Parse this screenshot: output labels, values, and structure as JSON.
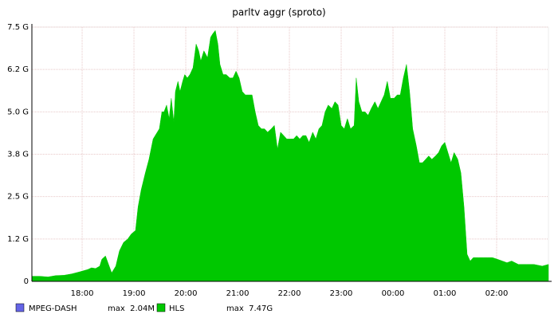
{
  "chart_data": {
    "type": "area",
    "title": "parltv aggr (sproto)",
    "x": [
      17.03,
      17.18,
      17.34,
      17.49,
      17.65,
      17.8,
      17.95,
      18.11,
      18.18,
      18.26,
      18.34,
      18.38,
      18.45,
      18.51,
      18.57,
      18.65,
      18.72,
      18.8,
      18.88,
      18.95,
      19.03,
      19.08,
      19.14,
      19.22,
      19.29,
      19.37,
      19.45,
      19.49,
      19.54,
      19.58,
      19.63,
      19.68,
      19.72,
      19.77,
      19.8,
      19.85,
      19.89,
      19.94,
      19.98,
      20.03,
      20.08,
      20.14,
      20.2,
      20.25,
      20.29,
      20.35,
      20.42,
      20.48,
      20.52,
      20.57,
      20.62,
      20.66,
      20.72,
      20.78,
      20.85,
      20.91,
      20.97,
      21.03,
      21.09,
      21.15,
      21.22,
      21.28,
      21.34,
      21.4,
      21.46,
      21.52,
      21.58,
      21.65,
      21.71,
      21.77,
      21.83,
      21.89,
      21.95,
      22.02,
      22.08,
      22.14,
      22.2,
      22.26,
      22.32,
      22.38,
      22.45,
      22.51,
      22.57,
      22.63,
      22.69,
      22.75,
      22.82,
      22.88,
      22.94,
      23.0,
      23.06,
      23.12,
      23.18,
      23.25,
      23.29,
      23.34,
      23.4,
      23.46,
      23.52,
      23.58,
      23.65,
      23.71,
      23.77,
      23.83,
      23.89,
      23.95,
      24.02,
      24.08,
      24.14,
      24.2,
      24.26,
      24.32,
      24.38,
      24.45,
      24.51,
      24.57,
      24.63,
      24.69,
      24.75,
      24.82,
      24.88,
      24.94,
      25.0,
      25.06,
      25.12,
      25.18,
      25.25,
      25.31,
      25.37,
      25.43,
      25.49,
      25.55,
      25.65,
      25.74,
      25.83,
      25.92,
      26.02,
      26.11,
      26.2,
      26.29,
      26.42,
      26.57,
      26.72,
      26.88,
      27.0
    ],
    "series": [
      {
        "name": "MPEG-DASH",
        "color": "#6464e6",
        "max_label": "max  2.04M",
        "values": [
          0,
          0,
          0,
          0,
          0,
          0,
          0,
          0,
          0,
          0,
          0,
          0,
          0,
          0,
          0,
          0,
          0,
          0,
          0,
          0,
          0,
          0,
          0,
          0,
          0,
          0,
          0,
          0,
          0,
          0,
          0,
          0,
          0,
          0,
          0,
          0,
          0,
          0,
          0,
          0,
          0,
          0,
          0,
          0,
          0,
          0,
          0,
          0,
          0,
          0,
          0,
          0,
          0,
          0,
          0,
          0,
          0,
          0,
          0,
          0,
          0,
          0,
          0,
          0,
          0,
          0,
          0,
          0,
          0,
          0,
          0,
          0,
          0,
          0,
          0,
          0,
          0,
          0,
          0,
          0,
          0,
          0,
          0,
          0,
          0,
          0,
          0,
          0,
          0,
          0,
          0,
          0,
          0,
          0,
          0,
          0,
          0,
          0,
          0,
          0,
          0,
          0,
          0,
          0,
          0,
          0,
          0,
          0,
          0,
          0,
          0,
          0,
          0,
          0,
          0,
          0,
          0,
          0,
          0,
          0,
          0,
          0,
          0,
          0,
          0,
          0,
          0,
          0,
          0,
          0,
          0,
          0,
          0,
          0,
          0,
          0,
          0,
          0,
          0,
          0,
          0,
          0,
          0,
          0,
          0
        ]
      },
      {
        "name": "HLS",
        "color": "#00c800",
        "max_label": "max  7.47G",
        "values": [
          0.15,
          0.15,
          0.13,
          0.17,
          0.18,
          0.22,
          0.28,
          0.35,
          0.4,
          0.38,
          0.45,
          0.65,
          0.75,
          0.5,
          0.25,
          0.45,
          0.9,
          1.15,
          1.25,
          1.4,
          1.5,
          2.2,
          2.7,
          3.2,
          3.6,
          4.2,
          4.4,
          4.5,
          5.0,
          5.0,
          5.2,
          4.8,
          5.4,
          4.7,
          5.6,
          5.9,
          5.6,
          5.9,
          6.1,
          6.0,
          6.1,
          6.3,
          7.0,
          6.8,
          6.5,
          6.8,
          6.6,
          7.2,
          7.3,
          7.4,
          7.0,
          6.4,
          6.1,
          6.1,
          6.0,
          6.0,
          6.2,
          6.0,
          5.6,
          5.5,
          5.5,
          5.5,
          5.0,
          4.6,
          4.5,
          4.5,
          4.4,
          4.5,
          4.6,
          3.9,
          4.4,
          4.3,
          4.2,
          4.2,
          4.2,
          4.3,
          4.2,
          4.3,
          4.3,
          4.1,
          4.4,
          4.2,
          4.5,
          4.6,
          5.0,
          5.2,
          5.1,
          5.3,
          5.2,
          4.6,
          4.5,
          4.8,
          4.5,
          4.6,
          6.0,
          5.3,
          5.0,
          5.0,
          4.9,
          5.1,
          5.3,
          5.1,
          5.3,
          5.5,
          5.9,
          5.4,
          5.4,
          5.5,
          5.5,
          6.0,
          6.4,
          5.6,
          4.5,
          4.0,
          3.5,
          3.5,
          3.6,
          3.7,
          3.6,
          3.7,
          3.8,
          4.0,
          4.1,
          3.8,
          3.5,
          3.8,
          3.6,
          3.2,
          2.2,
          0.8,
          0.6,
          0.7,
          0.7,
          0.7,
          0.7,
          0.7,
          0.65,
          0.6,
          0.55,
          0.6,
          0.5,
          0.5,
          0.5,
          0.45,
          0.5
        ]
      }
    ],
    "xlim": [
      17.03,
      27.0
    ],
    "xticks": [
      {
        "value": 18,
        "label": "18:00"
      },
      {
        "value": 19,
        "label": "19:00"
      },
      {
        "value": 20,
        "label": "20:00"
      },
      {
        "value": 21,
        "label": "21:00"
      },
      {
        "value": 22,
        "label": "22:00"
      },
      {
        "value": 23,
        "label": "23:00"
      },
      {
        "value": 24,
        "label": "00:00"
      },
      {
        "value": 25,
        "label": "01:00"
      },
      {
        "value": 26,
        "label": "02:00"
      }
    ],
    "ylim": [
      0,
      7.5
    ],
    "yticks": [
      0,
      {
        "value": 1.25,
        "label": "1.2 G"
      },
      {
        "value": 2.5,
        "label": "2.5 G"
      },
      {
        "value": 3.75,
        "label": "3.8 G"
      },
      {
        "value": 5,
        "label": "5.0 G"
      },
      {
        "value": 6.25,
        "label": "6.2 G"
      },
      {
        "value": 7.5,
        "label": "7.5 G"
      }
    ],
    "grid": true
  }
}
